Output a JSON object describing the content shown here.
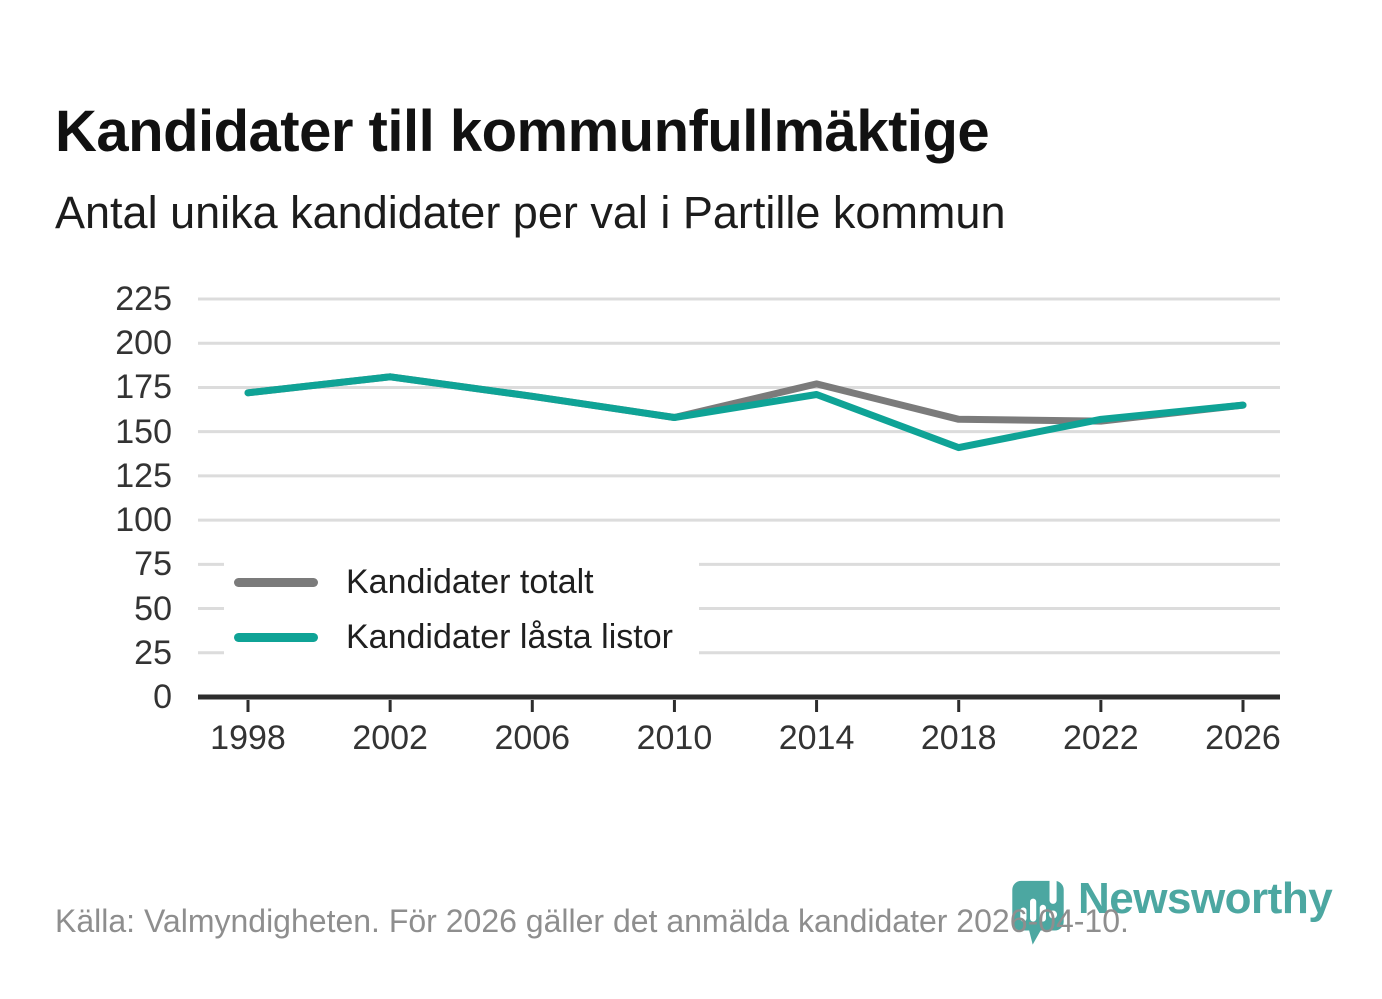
{
  "header": {
    "title": "Kandidater till kommunfullmäktige",
    "subtitle": "Antal unika kandidater per val i Partille kommun"
  },
  "chart_data": {
    "type": "line",
    "x": [
      1998,
      2002,
      2006,
      2010,
      2014,
      2018,
      2022,
      2026
    ],
    "series": [
      {
        "name": "Kandidater totalt",
        "color": "#7b7b7b",
        "values": [
          172,
          181,
          170,
          158,
          177,
          157,
          156,
          165
        ]
      },
      {
        "name": "Kandidater låsta listor",
        "color": "#0fa396",
        "values": [
          172,
          181,
          170,
          158,
          171,
          141,
          157,
          165
        ]
      }
    ],
    "title": "Kandidater till kommunfullmäktige",
    "subtitle": "Antal unika kandidater per val i Partille kommun",
    "xlabel": "",
    "ylabel": "",
    "ylim": [
      0,
      225
    ],
    "yticks": [
      0,
      25,
      50,
      75,
      100,
      125,
      150,
      175,
      200,
      225
    ],
    "grid": true,
    "legend_position": "inside-bottom-left",
    "grid_color": "#dcdcdc",
    "axis_color": "#2d2d2d",
    "tick_label_color": "#333333"
  },
  "footer": {
    "source": "Källa: Valmyndigheten. För 2026 gäller det anmälda kandidater 2026-04-10.",
    "logo_text": "Newsworthy",
    "logo_color": "#3da09a"
  }
}
